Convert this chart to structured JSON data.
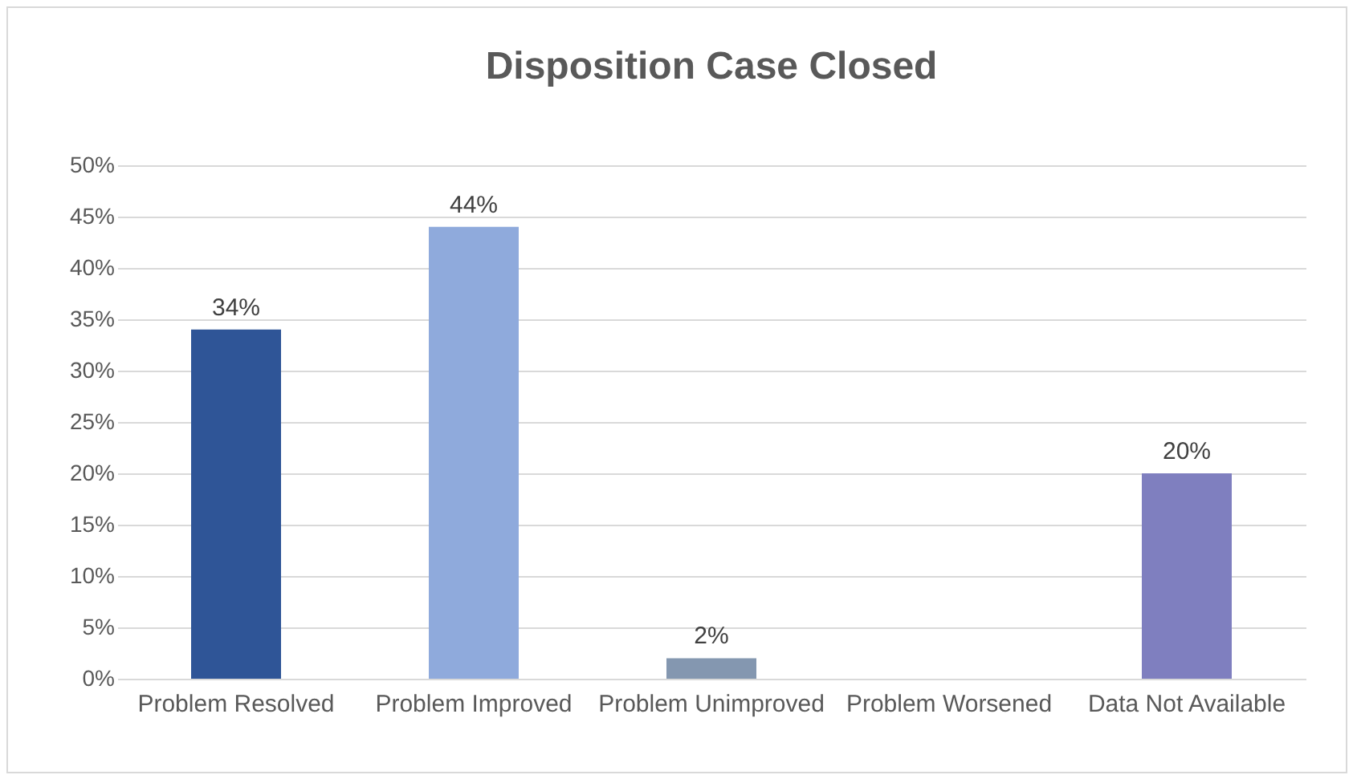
{
  "chart_data": {
    "type": "bar",
    "title": "Disposition Case Closed",
    "categories": [
      "Problem Resolved",
      "Problem Improved",
      "Problem Unimproved",
      "Problem Worsened",
      "Data Not Available"
    ],
    "values": [
      34,
      44,
      2,
      0,
      20
    ],
    "colors": [
      "#2f5597",
      "#8faadc",
      "#8497b0",
      "#a5a5a5",
      "#7f7fbf"
    ],
    "value_labels": [
      "34%",
      "44%",
      "2%",
      null,
      "20%"
    ],
    "ylim": [
      0,
      50
    ],
    "yticks": [
      {
        "value": 0,
        "label": "0%"
      },
      {
        "value": 5,
        "label": "5%"
      },
      {
        "value": 10,
        "label": "10%"
      },
      {
        "value": 15,
        "label": "15%"
      },
      {
        "value": 20,
        "label": "20%"
      },
      {
        "value": 25,
        "label": "25%"
      },
      {
        "value": 30,
        "label": "30%"
      },
      {
        "value": 35,
        "label": "35%"
      },
      {
        "value": 40,
        "label": "40%"
      },
      {
        "value": 45,
        "label": "45%"
      },
      {
        "value": 50,
        "label": "50%"
      }
    ],
    "grid": "y"
  }
}
